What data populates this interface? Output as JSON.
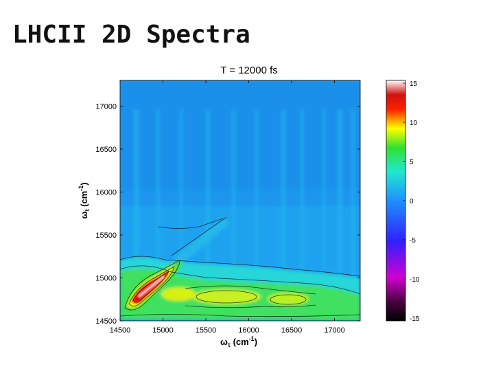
{
  "slide": {
    "title": "LHCII 2D Spectra"
  },
  "chart_data": {
    "type": "heatmap",
    "title": "T = 12000 fs",
    "xlabel": {
      "main": "ω",
      "sub": "τ",
      "unit": " (cm",
      "exp": "-1",
      "close": ")"
    },
    "ylabel": {
      "main": "ω",
      "sub": "t",
      "unit": " (cm",
      "exp": "-1",
      "close": ")"
    },
    "xlim": [
      14500,
      17300
    ],
    "ylim": [
      14500,
      17300
    ],
    "xticks": [
      "14500",
      "15000",
      "15500",
      "16000",
      "16500",
      "17000"
    ],
    "yticks": [
      "14500",
      "15000",
      "15500",
      "16000",
      "16500",
      "17000"
    ],
    "colorbar": {
      "min": -15,
      "max": 15,
      "ticks": [
        "15",
        "10",
        "5",
        "0",
        "-5",
        "-10",
        "-15"
      ]
    },
    "background_value": 2.5,
    "features": [
      {
        "name": "diagonal peak",
        "x": 14900,
        "y": 14880,
        "value": 15
      },
      {
        "name": "lower cross-peak band",
        "x": 15900,
        "y": 14810,
        "value": 7
      }
    ],
    "colors": {
      "low": "#000000",
      "mid": "#1e90ff",
      "high": "#ffffff"
    }
  }
}
